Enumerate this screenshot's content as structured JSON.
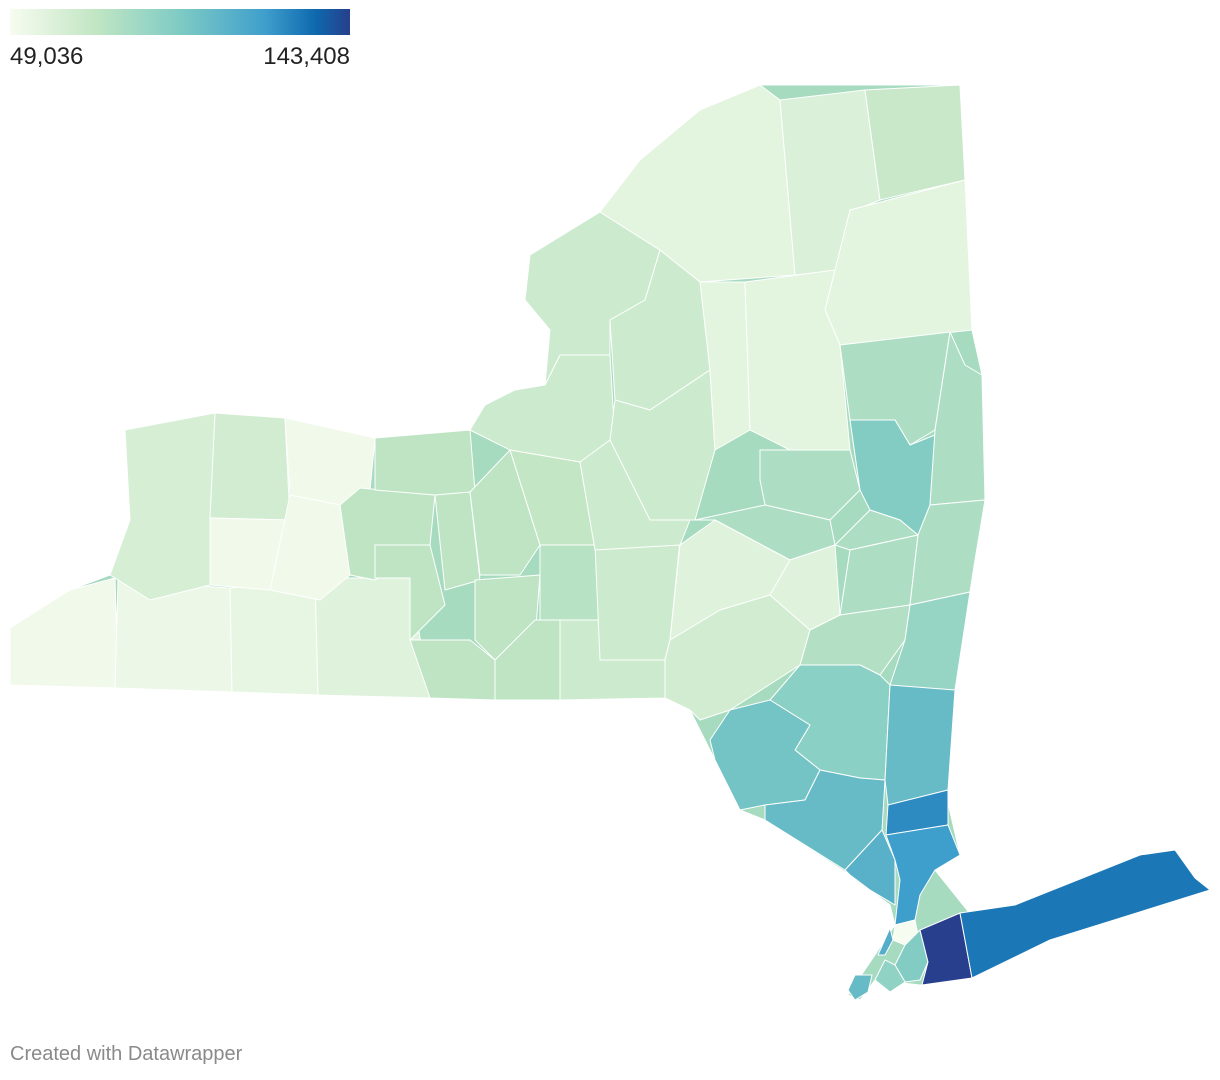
{
  "legend": {
    "min_label": "49,036",
    "max_label": "143,408",
    "min_value": 49036,
    "max_value": 143408,
    "colors": [
      "#f7fcf0",
      "#c2e6c4",
      "#7ecbc4",
      "#3f9fcc",
      "#0e68ae",
      "#273f8c"
    ]
  },
  "footer": {
    "credit": "Created with Datawrapper"
  },
  "map": {
    "outline_fill": "#a6dbc0",
    "regions": [
      {
        "id": "west-ny-1",
        "value": 52000
      },
      {
        "id": "west-ny-2",
        "value": 54000
      },
      {
        "id": "west-ny-3",
        "value": 56000
      },
      {
        "id": "west-ny-4",
        "value": 60000
      },
      {
        "id": "west-ny-5",
        "value": 64000
      },
      {
        "id": "west-ny-6",
        "value": 66000
      },
      {
        "id": "north-country-1",
        "value": 58000
      },
      {
        "id": "north-country-2",
        "value": 62000
      },
      {
        "id": "north-country-3",
        "value": 70000
      },
      {
        "id": "central-ny-1",
        "value": 68000
      },
      {
        "id": "central-ny-2",
        "value": 72000
      },
      {
        "id": "central-ny-3",
        "value": 76000
      },
      {
        "id": "finger-lakes-1",
        "value": 74000
      },
      {
        "id": "capital-1",
        "value": 80000
      },
      {
        "id": "capital-2",
        "value": 95000
      },
      {
        "id": "hudson-1",
        "value": 88000
      },
      {
        "id": "hudson-2",
        "value": 92000
      },
      {
        "id": "hudson-3",
        "value": 100000
      },
      {
        "id": "southern-tier-1",
        "value": 60000
      },
      {
        "id": "southern-tier-2",
        "value": 66000
      },
      {
        "id": "catskills-1",
        "value": 78000
      },
      {
        "id": "mid-hudson-1",
        "value": 105000
      },
      {
        "id": "westchester",
        "value": 120000
      },
      {
        "id": "putnam",
        "value": 125000
      },
      {
        "id": "rockland",
        "value": 110000
      },
      {
        "id": "bronx",
        "value": 49036
      },
      {
        "id": "manhattan",
        "value": 112000
      },
      {
        "id": "brooklyn",
        "value": 90000
      },
      {
        "id": "queens",
        "value": 95000
      },
      {
        "id": "staten-island",
        "value": 105000
      },
      {
        "id": "nassau",
        "value": 143408
      },
      {
        "id": "suffolk",
        "value": 130000
      }
    ]
  }
}
